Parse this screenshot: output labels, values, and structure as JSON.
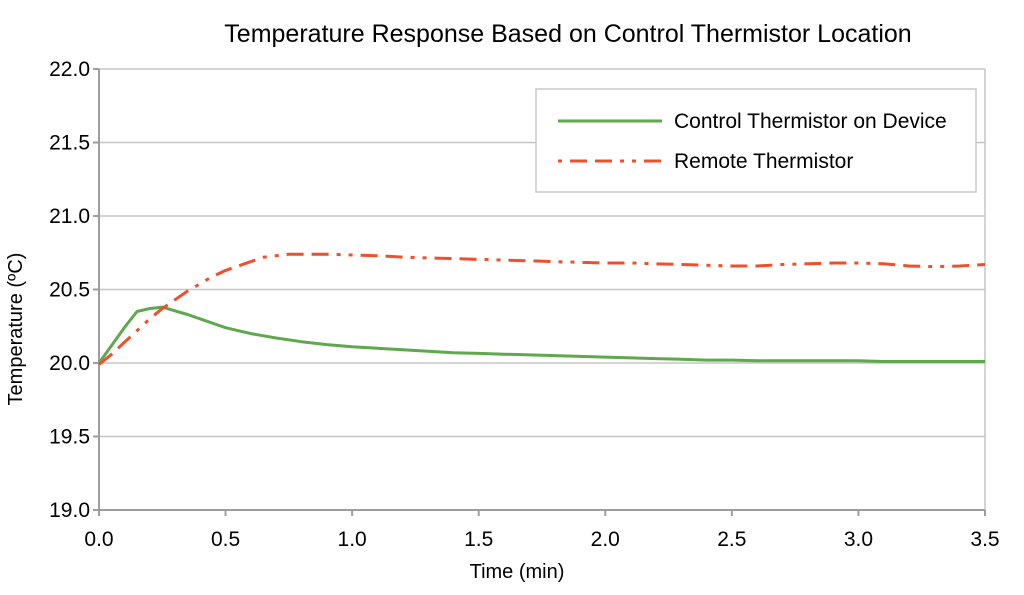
{
  "page": {
    "background": "#ffffff"
  },
  "chart_data": {
    "type": "line",
    "title": "Temperature Response Based on Control Thermistor Location",
    "xlabel": "Time (min)",
    "ylabel": "Temperature (ºC)",
    "xlim": [
      0.0,
      3.5
    ],
    "ylim": [
      19.0,
      22.0
    ],
    "x_ticks": [
      "0.0",
      "0.5",
      "1.0",
      "1.5",
      "2.0",
      "2.5",
      "3.0",
      "3.5"
    ],
    "y_ticks": [
      "19.0",
      "19.5",
      "20.0",
      "20.5",
      "21.0",
      "21.5",
      "22.0"
    ],
    "grid": "horizontal-only",
    "legend_position": "top-right-inside",
    "colors": {
      "series_green": "#5ea84e",
      "series_red": "#ef4f2b",
      "gridline": "#c6c6c6",
      "axis_line": "#9e9e9e",
      "legend_border": "#c9c9c9",
      "text": "#000000",
      "plot_background": "#ffffff"
    },
    "series": [
      {
        "name": "Control Thermistor on Device",
        "color": "#5ea84e",
        "line_style": "solid",
        "points": [
          [
            0.0,
            20.0
          ],
          [
            0.05,
            20.12
          ],
          [
            0.1,
            20.24
          ],
          [
            0.15,
            20.35
          ],
          [
            0.2,
            20.37
          ],
          [
            0.25,
            20.38
          ],
          [
            0.3,
            20.355
          ],
          [
            0.35,
            20.33
          ],
          [
            0.4,
            20.3
          ],
          [
            0.45,
            20.27
          ],
          [
            0.5,
            20.24
          ],
          [
            0.55,
            20.22
          ],
          [
            0.6,
            20.2
          ],
          [
            0.7,
            20.17
          ],
          [
            0.8,
            20.145
          ],
          [
            0.9,
            20.125
          ],
          [
            1.0,
            20.11
          ],
          [
            1.1,
            20.1
          ],
          [
            1.2,
            20.09
          ],
          [
            1.3,
            20.08
          ],
          [
            1.4,
            20.07
          ],
          [
            1.5,
            20.065
          ],
          [
            1.6,
            20.06
          ],
          [
            1.7,
            20.055
          ],
          [
            1.8,
            20.05
          ],
          [
            1.9,
            20.045
          ],
          [
            2.0,
            20.04
          ],
          [
            2.1,
            20.035
          ],
          [
            2.2,
            20.03
          ],
          [
            2.3,
            20.025
          ],
          [
            2.4,
            20.02
          ],
          [
            2.5,
            20.02
          ],
          [
            2.6,
            20.015
          ],
          [
            2.7,
            20.015
          ],
          [
            2.8,
            20.015
          ],
          [
            2.9,
            20.015
          ],
          [
            3.0,
            20.015
          ],
          [
            3.1,
            20.01
          ],
          [
            3.2,
            20.01
          ],
          [
            3.3,
            20.01
          ],
          [
            3.4,
            20.01
          ],
          [
            3.5,
            20.01
          ]
        ]
      },
      {
        "name": "Remote Thermistor",
        "color": "#ef4f2b",
        "line_style": "dash-dash-dot-dot",
        "points": [
          [
            0.0,
            19.99
          ],
          [
            0.05,
            20.06
          ],
          [
            0.1,
            20.14
          ],
          [
            0.15,
            20.22
          ],
          [
            0.2,
            20.3
          ],
          [
            0.25,
            20.37
          ],
          [
            0.3,
            20.43
          ],
          [
            0.35,
            20.49
          ],
          [
            0.4,
            20.54
          ],
          [
            0.45,
            20.59
          ],
          [
            0.5,
            20.63
          ],
          [
            0.55,
            20.66
          ],
          [
            0.6,
            20.69
          ],
          [
            0.65,
            20.72
          ],
          [
            0.7,
            20.73
          ],
          [
            0.75,
            20.74
          ],
          [
            0.8,
            20.74
          ],
          [
            0.9,
            20.74
          ],
          [
            1.0,
            20.735
          ],
          [
            1.1,
            20.73
          ],
          [
            1.2,
            20.72
          ],
          [
            1.3,
            20.715
          ],
          [
            1.4,
            20.71
          ],
          [
            1.5,
            20.705
          ],
          [
            1.6,
            20.7
          ],
          [
            1.7,
            20.695
          ],
          [
            1.8,
            20.69
          ],
          [
            1.9,
            20.685
          ],
          [
            2.0,
            20.68
          ],
          [
            2.1,
            20.68
          ],
          [
            2.2,
            20.675
          ],
          [
            2.3,
            20.67
          ],
          [
            2.4,
            20.665
          ],
          [
            2.5,
            20.66
          ],
          [
            2.6,
            20.66
          ],
          [
            2.7,
            20.67
          ],
          [
            2.8,
            20.675
          ],
          [
            2.9,
            20.68
          ],
          [
            3.0,
            20.68
          ],
          [
            3.1,
            20.675
          ],
          [
            3.2,
            20.66
          ],
          [
            3.3,
            20.655
          ],
          [
            3.4,
            20.66
          ],
          [
            3.5,
            20.67
          ]
        ]
      }
    ]
  }
}
